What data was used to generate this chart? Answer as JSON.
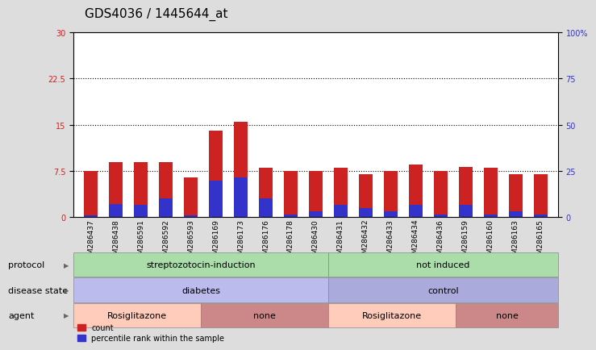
{
  "title": "GDS4036 / 1445644_at",
  "samples": [
    "GSM286437",
    "GSM286438",
    "GSM286591",
    "GSM286592",
    "GSM286593",
    "GSM286169",
    "GSM286173",
    "GSM286176",
    "GSM286178",
    "GSM286430",
    "GSM286431",
    "GSM286432",
    "GSM286433",
    "GSM286434",
    "GSM286436",
    "GSM286159",
    "GSM286160",
    "GSM286163",
    "GSM286165"
  ],
  "red_values": [
    7.5,
    9.0,
    9.0,
    9.0,
    6.5,
    14.0,
    15.5,
    8.0,
    7.5,
    7.5,
    8.0,
    7.0,
    7.5,
    8.5,
    7.5,
    8.2,
    8.0,
    7.0,
    7.0
  ],
  "blue_values": [
    0.3,
    2.2,
    2.0,
    3.0,
    0.3,
    6.0,
    6.5,
    3.0,
    0.5,
    1.0,
    2.0,
    1.5,
    1.0,
    2.0,
    0.5,
    2.0,
    0.5,
    1.0,
    0.5
  ],
  "ylim_left": [
    0,
    30
  ],
  "ylim_right": [
    0,
    100
  ],
  "yticks_left": [
    0,
    7.5,
    15,
    22.5,
    30
  ],
  "yticks_right": [
    0,
    25,
    50,
    75,
    100
  ],
  "ytick_labels_left": [
    "0",
    "7.5",
    "15",
    "22.5",
    "30"
  ],
  "ytick_labels_right": [
    "0",
    "25",
    "50",
    "75",
    "100%"
  ],
  "red_color": "#cc2222",
  "blue_color": "#3333cc",
  "bar_width": 0.55,
  "protocol_groups": [
    {
      "label": "streptozotocin-induction",
      "start": 0,
      "end": 9,
      "color": "#aaddaa"
    },
    {
      "label": "not induced",
      "start": 10,
      "end": 18,
      "color": "#aaddaa"
    }
  ],
  "disease_groups": [
    {
      "label": "diabetes",
      "start": 0,
      "end": 9,
      "color": "#bbbbee"
    },
    {
      "label": "control",
      "start": 10,
      "end": 18,
      "color": "#aaaadd"
    }
  ],
  "agent_groups": [
    {
      "label": "Rosiglitazone",
      "start": 0,
      "end": 4,
      "color": "#ffccbb"
    },
    {
      "label": "none",
      "start": 5,
      "end": 9,
      "color": "#cc8888"
    },
    {
      "label": "Rosiglitazone",
      "start": 10,
      "end": 14,
      "color": "#ffccbb"
    },
    {
      "label": "none",
      "start": 15,
      "end": 18,
      "color": "#cc8888"
    }
  ],
  "row_labels": [
    "protocol",
    "disease state",
    "agent"
  ],
  "background_color": "#dddddd",
  "plot_bg_color": "#ffffff",
  "title_fontsize": 11,
  "tick_fontsize": 7,
  "label_fontsize": 8,
  "annot_fontsize": 8
}
